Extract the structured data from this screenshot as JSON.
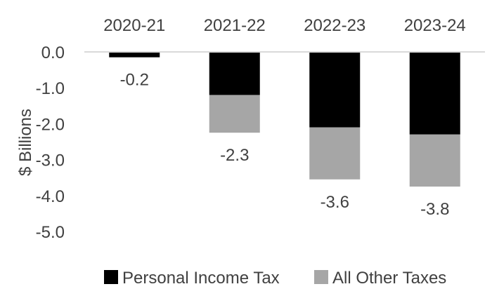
{
  "chart_data": {
    "type": "bar",
    "stacked": true,
    "orientation": "vertical",
    "categories": [
      "2020-21",
      "2021-22",
      "2022-23",
      "2023-24"
    ],
    "category_axis_position": "top",
    "series": [
      {
        "name": "Personal Income Tax",
        "color": "#000000",
        "values": [
          -0.15,
          -1.2,
          -2.1,
          -2.3
        ]
      },
      {
        "name": "All Other Taxes",
        "color": "#a6a6a6",
        "values": [
          0.0,
          -1.05,
          -1.45,
          -1.45
        ]
      }
    ],
    "totals": [
      "-0.2",
      "-2.3",
      "-3.6",
      "-3.8"
    ],
    "ylabel": "$ Billions",
    "ylim": [
      -5.0,
      0.0
    ],
    "yticks": [
      "0.0",
      "-1.0",
      "-2.0",
      "-3.0",
      "-4.0",
      "-5.0"
    ],
    "grid": false,
    "legend": "bottom"
  }
}
